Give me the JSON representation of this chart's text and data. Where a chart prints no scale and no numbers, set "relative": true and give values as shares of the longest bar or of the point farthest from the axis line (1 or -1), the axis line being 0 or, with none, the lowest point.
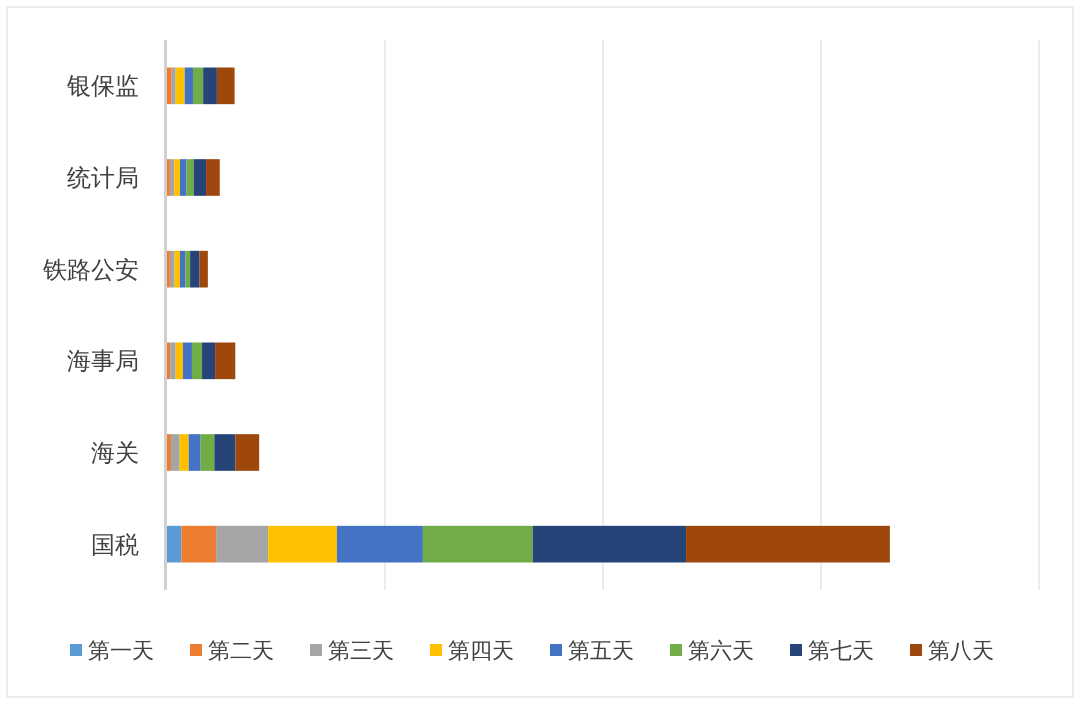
{
  "chart_data": {
    "type": "bar",
    "orientation": "horizontal",
    "stacked": true,
    "relative": true,
    "grid": "x",
    "legend": "bottom",
    "categories": [
      "银保监",
      "统计局",
      "铁路公安",
      "海事局",
      "海关",
      "国税"
    ],
    "series": [
      {
        "name": "第一天",
        "color": "#5b9bd5",
        "values": [
          0,
          0,
          0,
          0,
          0,
          0.02
        ]
      },
      {
        "name": "第二天",
        "color": "#ed7d31",
        "values": [
          0.0065,
          0.004,
          0.004,
          0.0045,
          0.0055,
          0.048
        ]
      },
      {
        "name": "第三天",
        "color": "#a5a5a5",
        "values": [
          0.0055,
          0.006,
          0.0065,
          0.0075,
          0.012,
          0.072
        ]
      },
      {
        "name": "第四天",
        "color": "#ffc000",
        "values": [
          0.0125,
          0.008,
          0.0075,
          0.01,
          0.0125,
          0.095
        ]
      },
      {
        "name": "第五天",
        "color": "#4472c4",
        "values": [
          0.0115,
          0.009,
          0.0075,
          0.0125,
          0.0165,
          0.119
        ]
      },
      {
        "name": "第六天",
        "color": "#70ad47",
        "values": [
          0.014,
          0.01,
          0.0065,
          0.014,
          0.019,
          0.152
        ]
      },
      {
        "name": "第七天",
        "color": "#264478",
        "values": [
          0.019,
          0.017,
          0.013,
          0.018,
          0.029,
          0.212
        ]
      },
      {
        "name": "第八天",
        "color": "#9e480e",
        "values": [
          0.0245,
          0.019,
          0.0115,
          0.028,
          0.033,
          0.282
        ]
      }
    ]
  }
}
